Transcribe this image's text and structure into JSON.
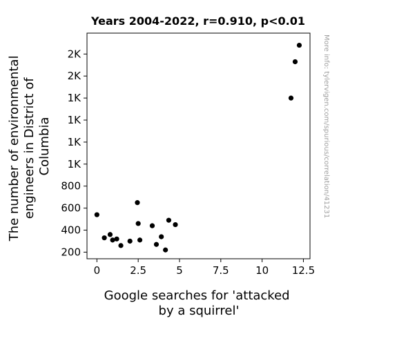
{
  "chart_data": {
    "type": "scatter",
    "title": "Years 2004-2022, r=0.910, p<0.01",
    "xlabel_lines": [
      "Google searches for 'attacked",
      "by a squirrel'"
    ],
    "ylabel_lines": [
      "The number of environmental",
      "engineers in District of",
      "Columbia"
    ],
    "side_note": "More info: tylervigen.com/spurious/correlation/41231",
    "xlim": [
      -0.6,
      12.9
    ],
    "ylim": [
      140,
      2190
    ],
    "x_ticks": [
      {
        "value": 0,
        "label": "0"
      },
      {
        "value": 2.5,
        "label": "2.5"
      },
      {
        "value": 5,
        "label": "5"
      },
      {
        "value": 7.5,
        "label": "7.5"
      },
      {
        "value": 10,
        "label": "10"
      },
      {
        "value": 12.5,
        "label": "12.5"
      }
    ],
    "y_ticks": [
      {
        "value": 200,
        "label": "200"
      },
      {
        "value": 400,
        "label": "400"
      },
      {
        "value": 600,
        "label": "600"
      },
      {
        "value": 800,
        "label": "800"
      },
      {
        "value": 1000,
        "label": "1K"
      },
      {
        "value": 1200,
        "label": "1K"
      },
      {
        "value": 1400,
        "label": "1K"
      },
      {
        "value": 1600,
        "label": "1K"
      },
      {
        "value": 1800,
        "label": "2K"
      },
      {
        "value": 2000,
        "label": "2K"
      }
    ],
    "points": [
      {
        "x": 0.0,
        "y": 540
      },
      {
        "x": 0.45,
        "y": 330
      },
      {
        "x": 0.8,
        "y": 360
      },
      {
        "x": 0.95,
        "y": 310
      },
      {
        "x": 1.2,
        "y": 320
      },
      {
        "x": 1.45,
        "y": 260
      },
      {
        "x": 2.0,
        "y": 300
      },
      {
        "x": 2.45,
        "y": 650
      },
      {
        "x": 2.5,
        "y": 460
      },
      {
        "x": 2.6,
        "y": 310
      },
      {
        "x": 3.35,
        "y": 440
      },
      {
        "x": 3.6,
        "y": 270
      },
      {
        "x": 3.9,
        "y": 340
      },
      {
        "x": 4.15,
        "y": 220
      },
      {
        "x": 4.35,
        "y": 490
      },
      {
        "x": 4.75,
        "y": 450
      },
      {
        "x": 11.75,
        "y": 1600
      },
      {
        "x": 12.0,
        "y": 1930
      },
      {
        "x": 12.25,
        "y": 2080
      }
    ],
    "marker_color": "#000000",
    "grid": false
  }
}
